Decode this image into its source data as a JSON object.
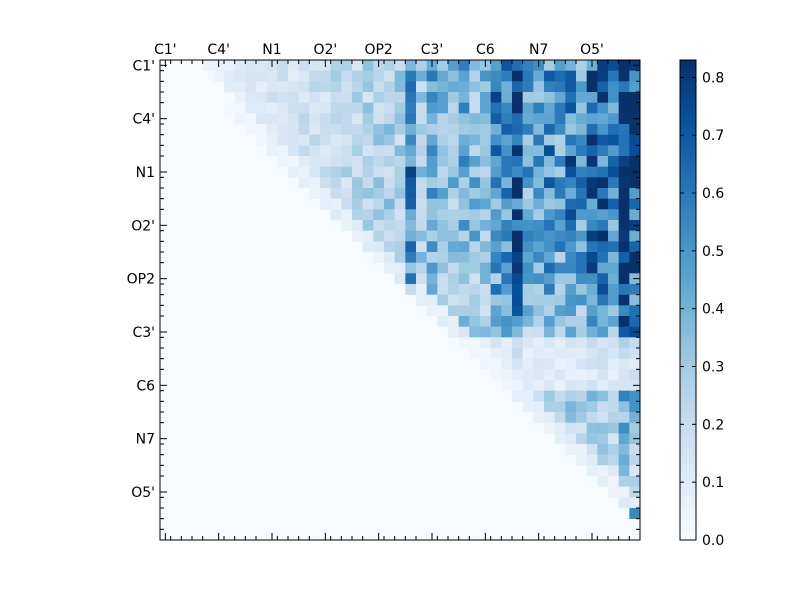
{
  "chart_data": {
    "type": "heatmap",
    "title": "",
    "rows": 45,
    "cols": 45,
    "triangle": "upper",
    "x_tick_labels": [
      "C1'",
      "C4'",
      "N1",
      "O2'",
      "OP2",
      "C3'",
      "C6",
      "N7",
      "O5'"
    ],
    "y_tick_labels": [
      "C1'",
      "C4'",
      "N1",
      "O2'",
      "OP2",
      "C3'",
      "C6",
      "N7",
      "O5'"
    ],
    "label_interval": 5,
    "colorbar": {
      "min": 0.0,
      "max": 0.83,
      "ticks": [
        "0.0",
        "0.1",
        "0.2",
        "0.3",
        "0.4",
        "0.5",
        "0.6",
        "0.7",
        "0.8"
      ],
      "colormap": "Blues"
    },
    "grid": false,
    "approximate_values": "Upper-triangle pairwise values (row i < col j). Background ≈ 0.0; values rise toward the right columns. Strong bands near columns 23, 33, 40 and 43-44; maximum ≈ 0.82 near row 15, col 43.",
    "feature_values": [
      {
        "row": 15,
        "col": 43,
        "value": 0.82
      },
      {
        "row": 16,
        "col": 43,
        "value": 0.8
      },
      {
        "row": 20,
        "col": 33,
        "value": 0.75
      },
      {
        "row": 20,
        "col": 23,
        "value": 0.62
      },
      {
        "row": 42,
        "col": 44,
        "value": 0.55
      },
      {
        "row": 6,
        "col": 33,
        "value": 0.65
      },
      {
        "row": 11,
        "col": 31,
        "value": 0.62
      }
    ]
  }
}
